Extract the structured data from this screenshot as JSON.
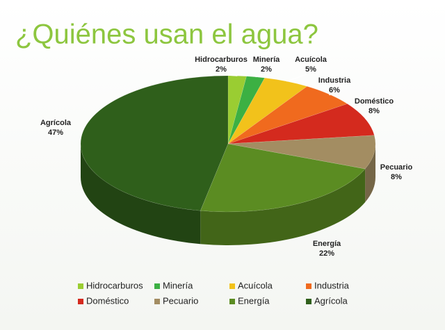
{
  "chart_data": {
    "type": "pie3d",
    "title": "¿Quiénes usan el agua?",
    "categories": [
      "Hidrocarburos",
      "Minería",
      "Acuícola",
      "Industria",
      "Doméstico",
      "Pecuario",
      "Energía",
      "Agrícola"
    ],
    "values": [
      2,
      2,
      5,
      6,
      8,
      8,
      22,
      47
    ],
    "value_labels": [
      "2%",
      "2%",
      "5%",
      "6%",
      "8%",
      "8%",
      "22%",
      "47%"
    ],
    "colors": [
      "#9acd32",
      "#3cb043",
      "#f2c21b",
      "#f06a1e",
      "#d42a1e",
      "#a38d62",
      "#5b8c22",
      "#2f5f1b"
    ],
    "legend": "bottom"
  }
}
